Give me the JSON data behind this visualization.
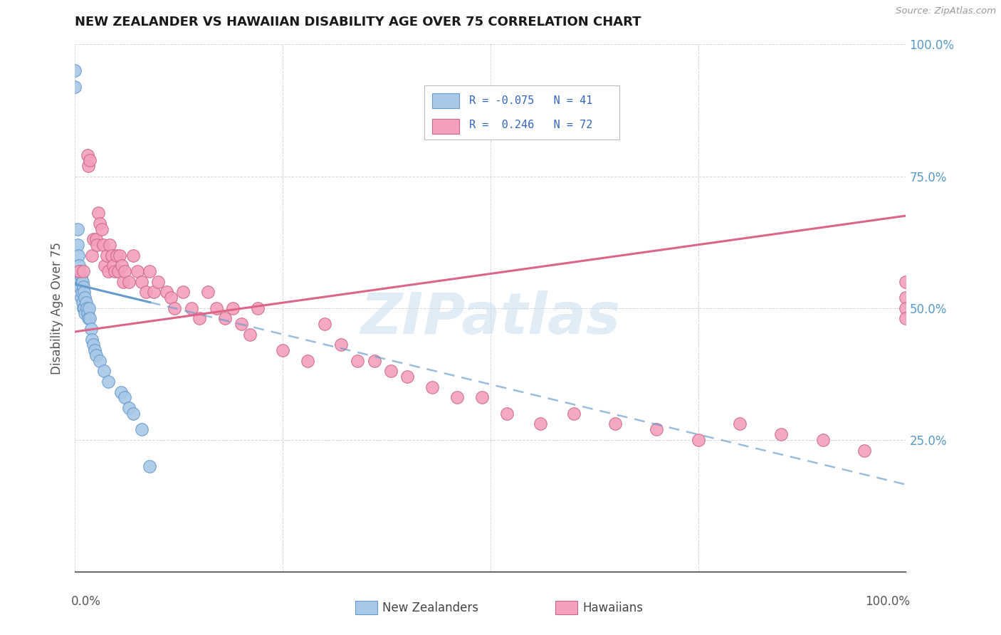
{
  "title": "NEW ZEALANDER VS HAWAIIAN DISABILITY AGE OVER 75 CORRELATION CHART",
  "source": "Source: ZipAtlas.com",
  "ylabel": "Disability Age Over 75",
  "nz_color": "#a8c8e8",
  "nz_edge_color": "#6699cc",
  "hw_color": "#f4a0bc",
  "hw_edge_color": "#cc6688",
  "nz_line_color": "#6699cc",
  "hw_line_color": "#dd6688",
  "watermark": "ZIPatlas",
  "watermark_color": "#c8ddf0",
  "background_color": "#ffffff",
  "grid_color": "#cccccc",
  "right_label_color": "#5599cc",
  "nz_points_x": [
    0.0,
    0.0,
    0.003,
    0.003,
    0.004,
    0.005,
    0.005,
    0.006,
    0.006,
    0.007,
    0.007,
    0.008,
    0.008,
    0.009,
    0.009,
    0.01,
    0.01,
    0.011,
    0.011,
    0.012,
    0.012,
    0.013,
    0.014,
    0.015,
    0.016,
    0.017,
    0.018,
    0.019,
    0.02,
    0.022,
    0.024,
    0.025,
    0.03,
    0.035,
    0.04,
    0.055,
    0.06,
    0.065,
    0.07,
    0.08,
    0.09
  ],
  "nz_points_y": [
    0.95,
    0.92,
    0.65,
    0.62,
    0.6,
    0.58,
    0.55,
    0.57,
    0.54,
    0.56,
    0.52,
    0.55,
    0.53,
    0.55,
    0.51,
    0.54,
    0.5,
    0.53,
    0.5,
    0.52,
    0.49,
    0.51,
    0.5,
    0.49,
    0.48,
    0.5,
    0.48,
    0.46,
    0.44,
    0.43,
    0.42,
    0.41,
    0.4,
    0.38,
    0.36,
    0.34,
    0.33,
    0.31,
    0.3,
    0.27,
    0.2
  ],
  "hw_points_x": [
    0.005,
    0.01,
    0.015,
    0.016,
    0.018,
    0.02,
    0.022,
    0.025,
    0.026,
    0.028,
    0.03,
    0.032,
    0.034,
    0.036,
    0.038,
    0.04,
    0.042,
    0.044,
    0.046,
    0.048,
    0.05,
    0.052,
    0.054,
    0.056,
    0.058,
    0.06,
    0.065,
    0.07,
    0.075,
    0.08,
    0.085,
    0.09,
    0.095,
    0.1,
    0.11,
    0.115,
    0.12,
    0.13,
    0.14,
    0.15,
    0.16,
    0.17,
    0.18,
    0.19,
    0.2,
    0.21,
    0.22,
    0.25,
    0.28,
    0.3,
    0.32,
    0.34,
    0.36,
    0.38,
    0.4,
    0.43,
    0.46,
    0.49,
    0.52,
    0.56,
    0.6,
    0.65,
    0.7,
    0.75,
    0.8,
    0.85,
    0.9,
    0.95,
    1.0,
    1.0,
    1.0,
    1.0
  ],
  "hw_points_y": [
    0.57,
    0.57,
    0.79,
    0.77,
    0.78,
    0.6,
    0.63,
    0.63,
    0.62,
    0.68,
    0.66,
    0.65,
    0.62,
    0.58,
    0.6,
    0.57,
    0.62,
    0.6,
    0.58,
    0.57,
    0.6,
    0.57,
    0.6,
    0.58,
    0.55,
    0.57,
    0.55,
    0.6,
    0.57,
    0.55,
    0.53,
    0.57,
    0.53,
    0.55,
    0.53,
    0.52,
    0.5,
    0.53,
    0.5,
    0.48,
    0.53,
    0.5,
    0.48,
    0.5,
    0.47,
    0.45,
    0.5,
    0.42,
    0.4,
    0.47,
    0.43,
    0.4,
    0.4,
    0.38,
    0.37,
    0.35,
    0.33,
    0.33,
    0.3,
    0.28,
    0.3,
    0.28,
    0.27,
    0.25,
    0.28,
    0.26,
    0.25,
    0.23,
    0.55,
    0.52,
    0.5,
    0.48
  ],
  "nz_R": -0.075,
  "hw_R": 0.246,
  "nz_N": 41,
  "hw_N": 72,
  "nz_intercept": 0.545,
  "nz_slope": -0.38,
  "hw_intercept": 0.455,
  "hw_slope": 0.22
}
